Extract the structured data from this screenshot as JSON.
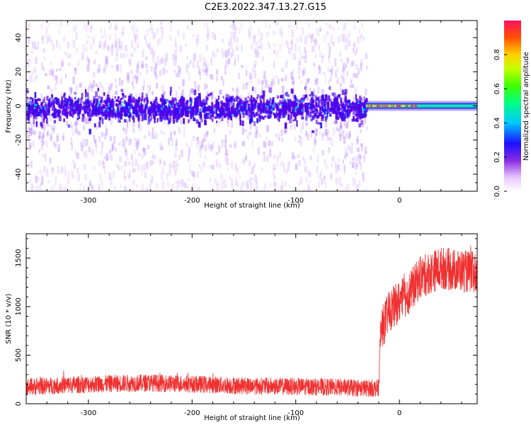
{
  "title": "C2E3.2022.347.13.27.G15",
  "colors": {
    "snr_line": "#f03030",
    "spectrogram_low": "#a040ff",
    "spectrogram_core": "#5a00e0"
  },
  "chart_data": [
    {
      "type": "heatmap",
      "xlabel": "Height of straight line (km)",
      "ylabel": "Frequency (Hz)",
      "xlim": [
        -360,
        75
      ],
      "ylim": [
        -50,
        50
      ],
      "xticks": [
        -300,
        -200,
        -100,
        0
      ],
      "yticks": [
        -40,
        -20,
        0,
        20,
        40
      ],
      "grid": false,
      "colorbar": {
        "label": "Normalized spectral amplitude",
        "range": [
          0,
          1
        ],
        "ticks": [
          "0.0",
          "0.2",
          "0.4",
          "0.6",
          "0.8"
        ]
      },
      "segments": [
        {
          "x_range": [
            -360,
            -32
          ],
          "center_freq_hz": 0,
          "description_value": "broadband noise",
          "amplitude_core": 0.15
        },
        {
          "x_range": [
            -32,
            75
          ],
          "center_freq_hz": 0,
          "amplitude_core": 0.9
        }
      ]
    },
    {
      "type": "line",
      "xlabel": "Height of straight line (km)",
      "ylabel": "SNR (10 * v/v)",
      "xlim": [
        -360,
        75
      ],
      "ylim": [
        0,
        1750
      ],
      "xticks": [
        -300,
        -200,
        -100,
        0
      ],
      "yticks": [
        0,
        500,
        1000,
        1500
      ],
      "grid": false,
      "x": [
        -360,
        -330,
        -300,
        -270,
        -240,
        -210,
        -180,
        -150,
        -120,
        -90,
        -60,
        -30,
        -20,
        -18,
        -10,
        0,
        10,
        20,
        30,
        40,
        50,
        60,
        75
      ],
      "y": [
        170,
        190,
        200,
        210,
        215,
        205,
        195,
        185,
        180,
        175,
        170,
        160,
        160,
        750,
        950,
        1050,
        1150,
        1300,
        1350,
        1400,
        1380,
        1370,
        1340
      ]
    }
  ]
}
